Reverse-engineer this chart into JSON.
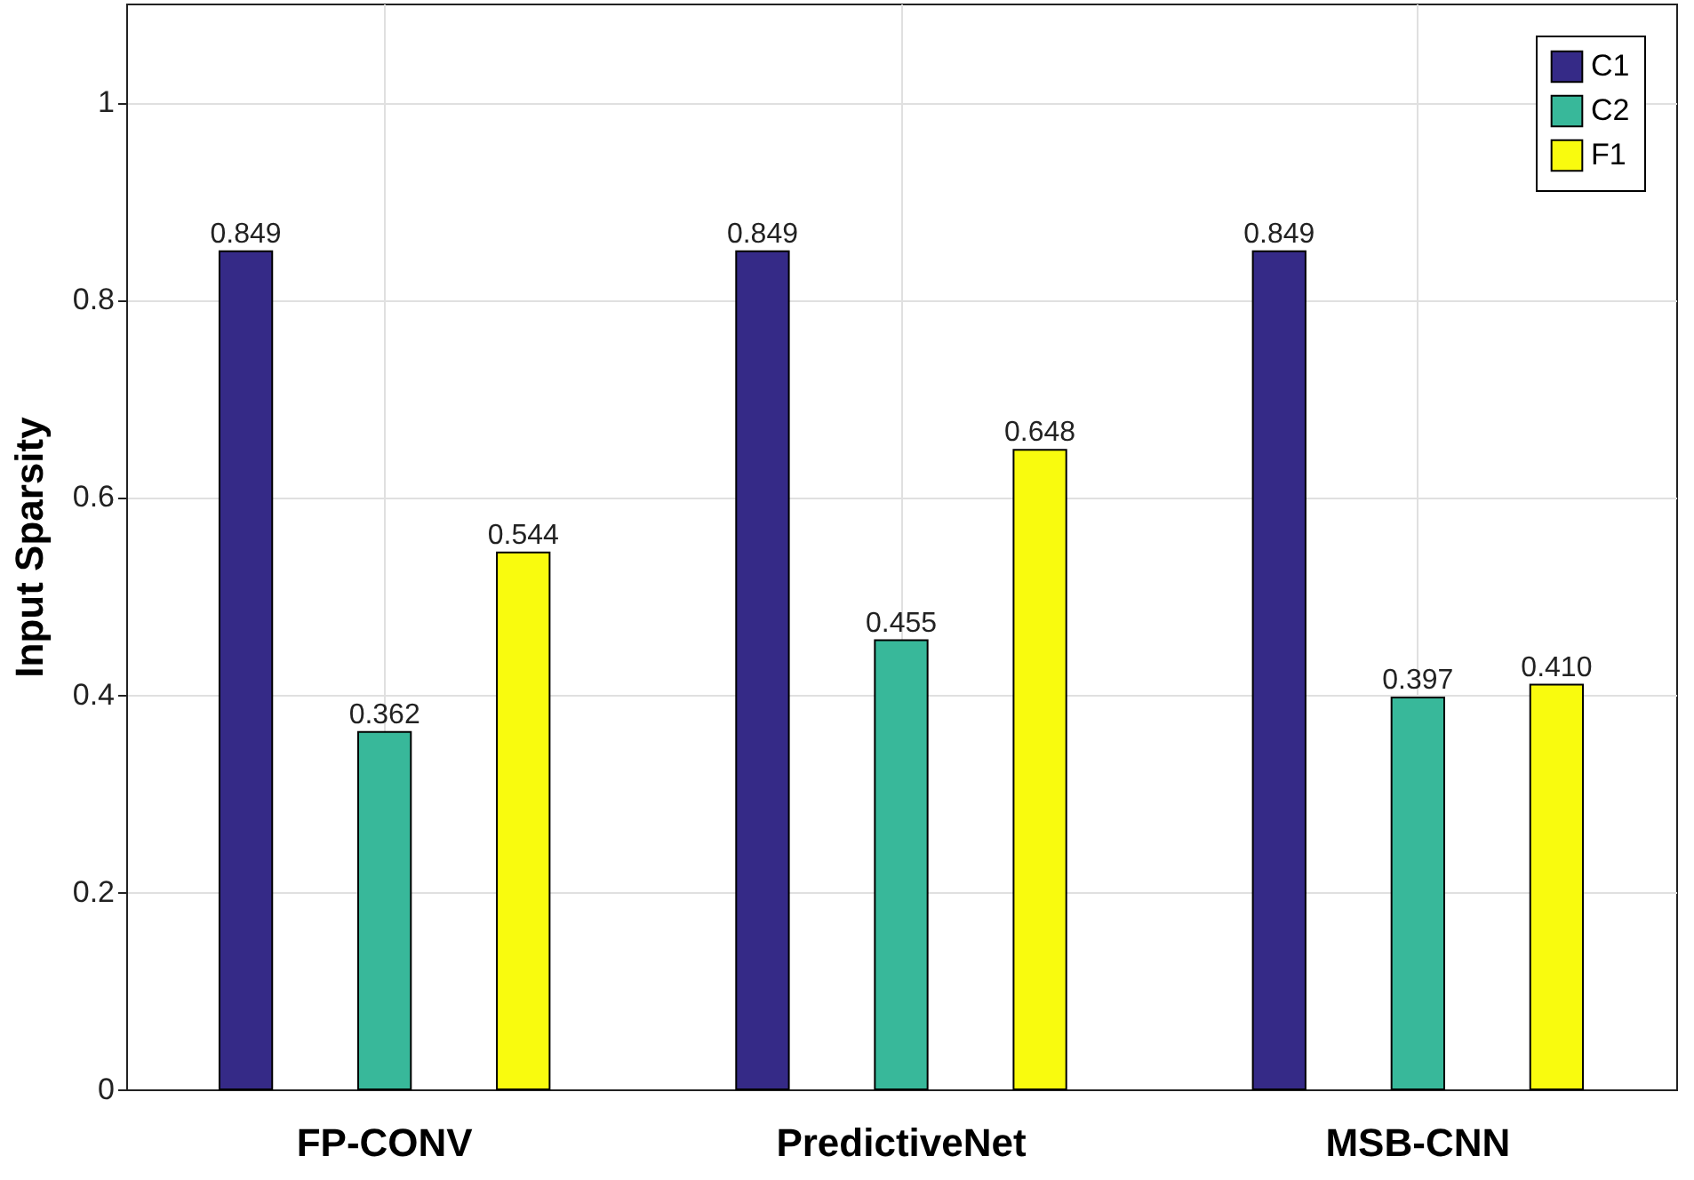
{
  "chart_data": {
    "type": "bar",
    "ylabel": "Input Sparsity",
    "categories": [
      "FP-CONV",
      "PredictiveNet",
      "MSB-CNN"
    ],
    "series": [
      {
        "name": "C1",
        "color": "#352a87",
        "values": [
          0.849,
          0.849,
          0.849
        ],
        "value_labels": [
          "0.849",
          "0.849",
          "0.849"
        ]
      },
      {
        "name": "C2",
        "color": "#38b89a",
        "values": [
          0.362,
          0.455,
          0.397
        ],
        "value_labels": [
          "0.362",
          "0.455",
          "0.397"
        ]
      },
      {
        "name": "F1",
        "color": "#f9fb0e",
        "values": [
          0.544,
          0.648,
          0.41
        ],
        "value_labels": [
          "0.544",
          "0.648",
          "0.410"
        ]
      }
    ],
    "ylim": [
      0,
      1.1
    ],
    "yticks": [
      0,
      0.2,
      0.4,
      0.6,
      0.8,
      1
    ],
    "grid": true,
    "legend": "top right"
  }
}
